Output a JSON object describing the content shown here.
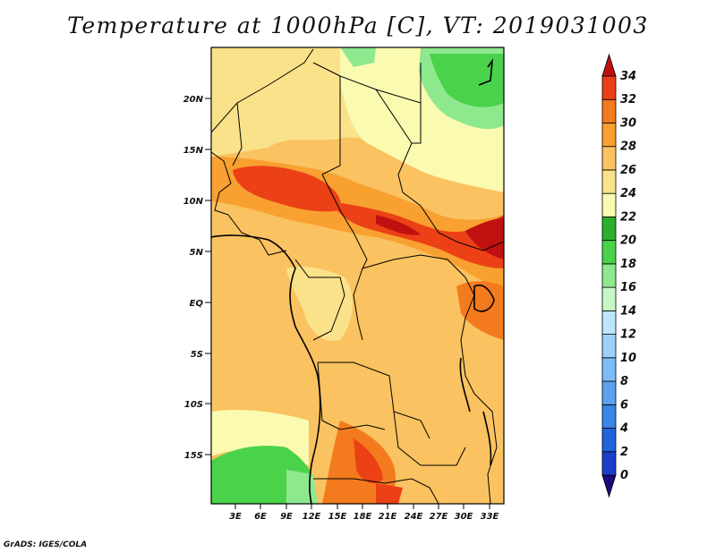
{
  "title": "Temperature at 1000hPa [C], VT: 2019031003",
  "footer": "GrADS: IGES/COLA",
  "map": {
    "lat_ticks": [
      "20N",
      "15N",
      "10N",
      "5N",
      "EQ",
      "5S",
      "10S",
      "15S"
    ],
    "lon_ticks": [
      "3E",
      "6E",
      "9E",
      "12E",
      "15E",
      "18E",
      "21E",
      "24E",
      "27E",
      "30E",
      "33E"
    ]
  },
  "colorbar": {
    "labels": [
      "0",
      "2",
      "4",
      "6",
      "8",
      "10",
      "12",
      "14",
      "16",
      "18",
      "20",
      "22",
      "24",
      "26",
      "28",
      "30",
      "32",
      "34"
    ],
    "colors": [
      "#1a0a7a",
      "#1c3ec8",
      "#2264dc",
      "#3a86e8",
      "#5ca2f0",
      "#7cbcf8",
      "#9ed0fa",
      "#bde6fc",
      "#c6f8c6",
      "#8ee88e",
      "#4ad24a",
      "#2cb02c",
      "#fafab0",
      "#fae28a",
      "#fac260",
      "#f8a030",
      "#f47a1e",
      "#ec4016",
      "#c01010"
    ]
  }
}
